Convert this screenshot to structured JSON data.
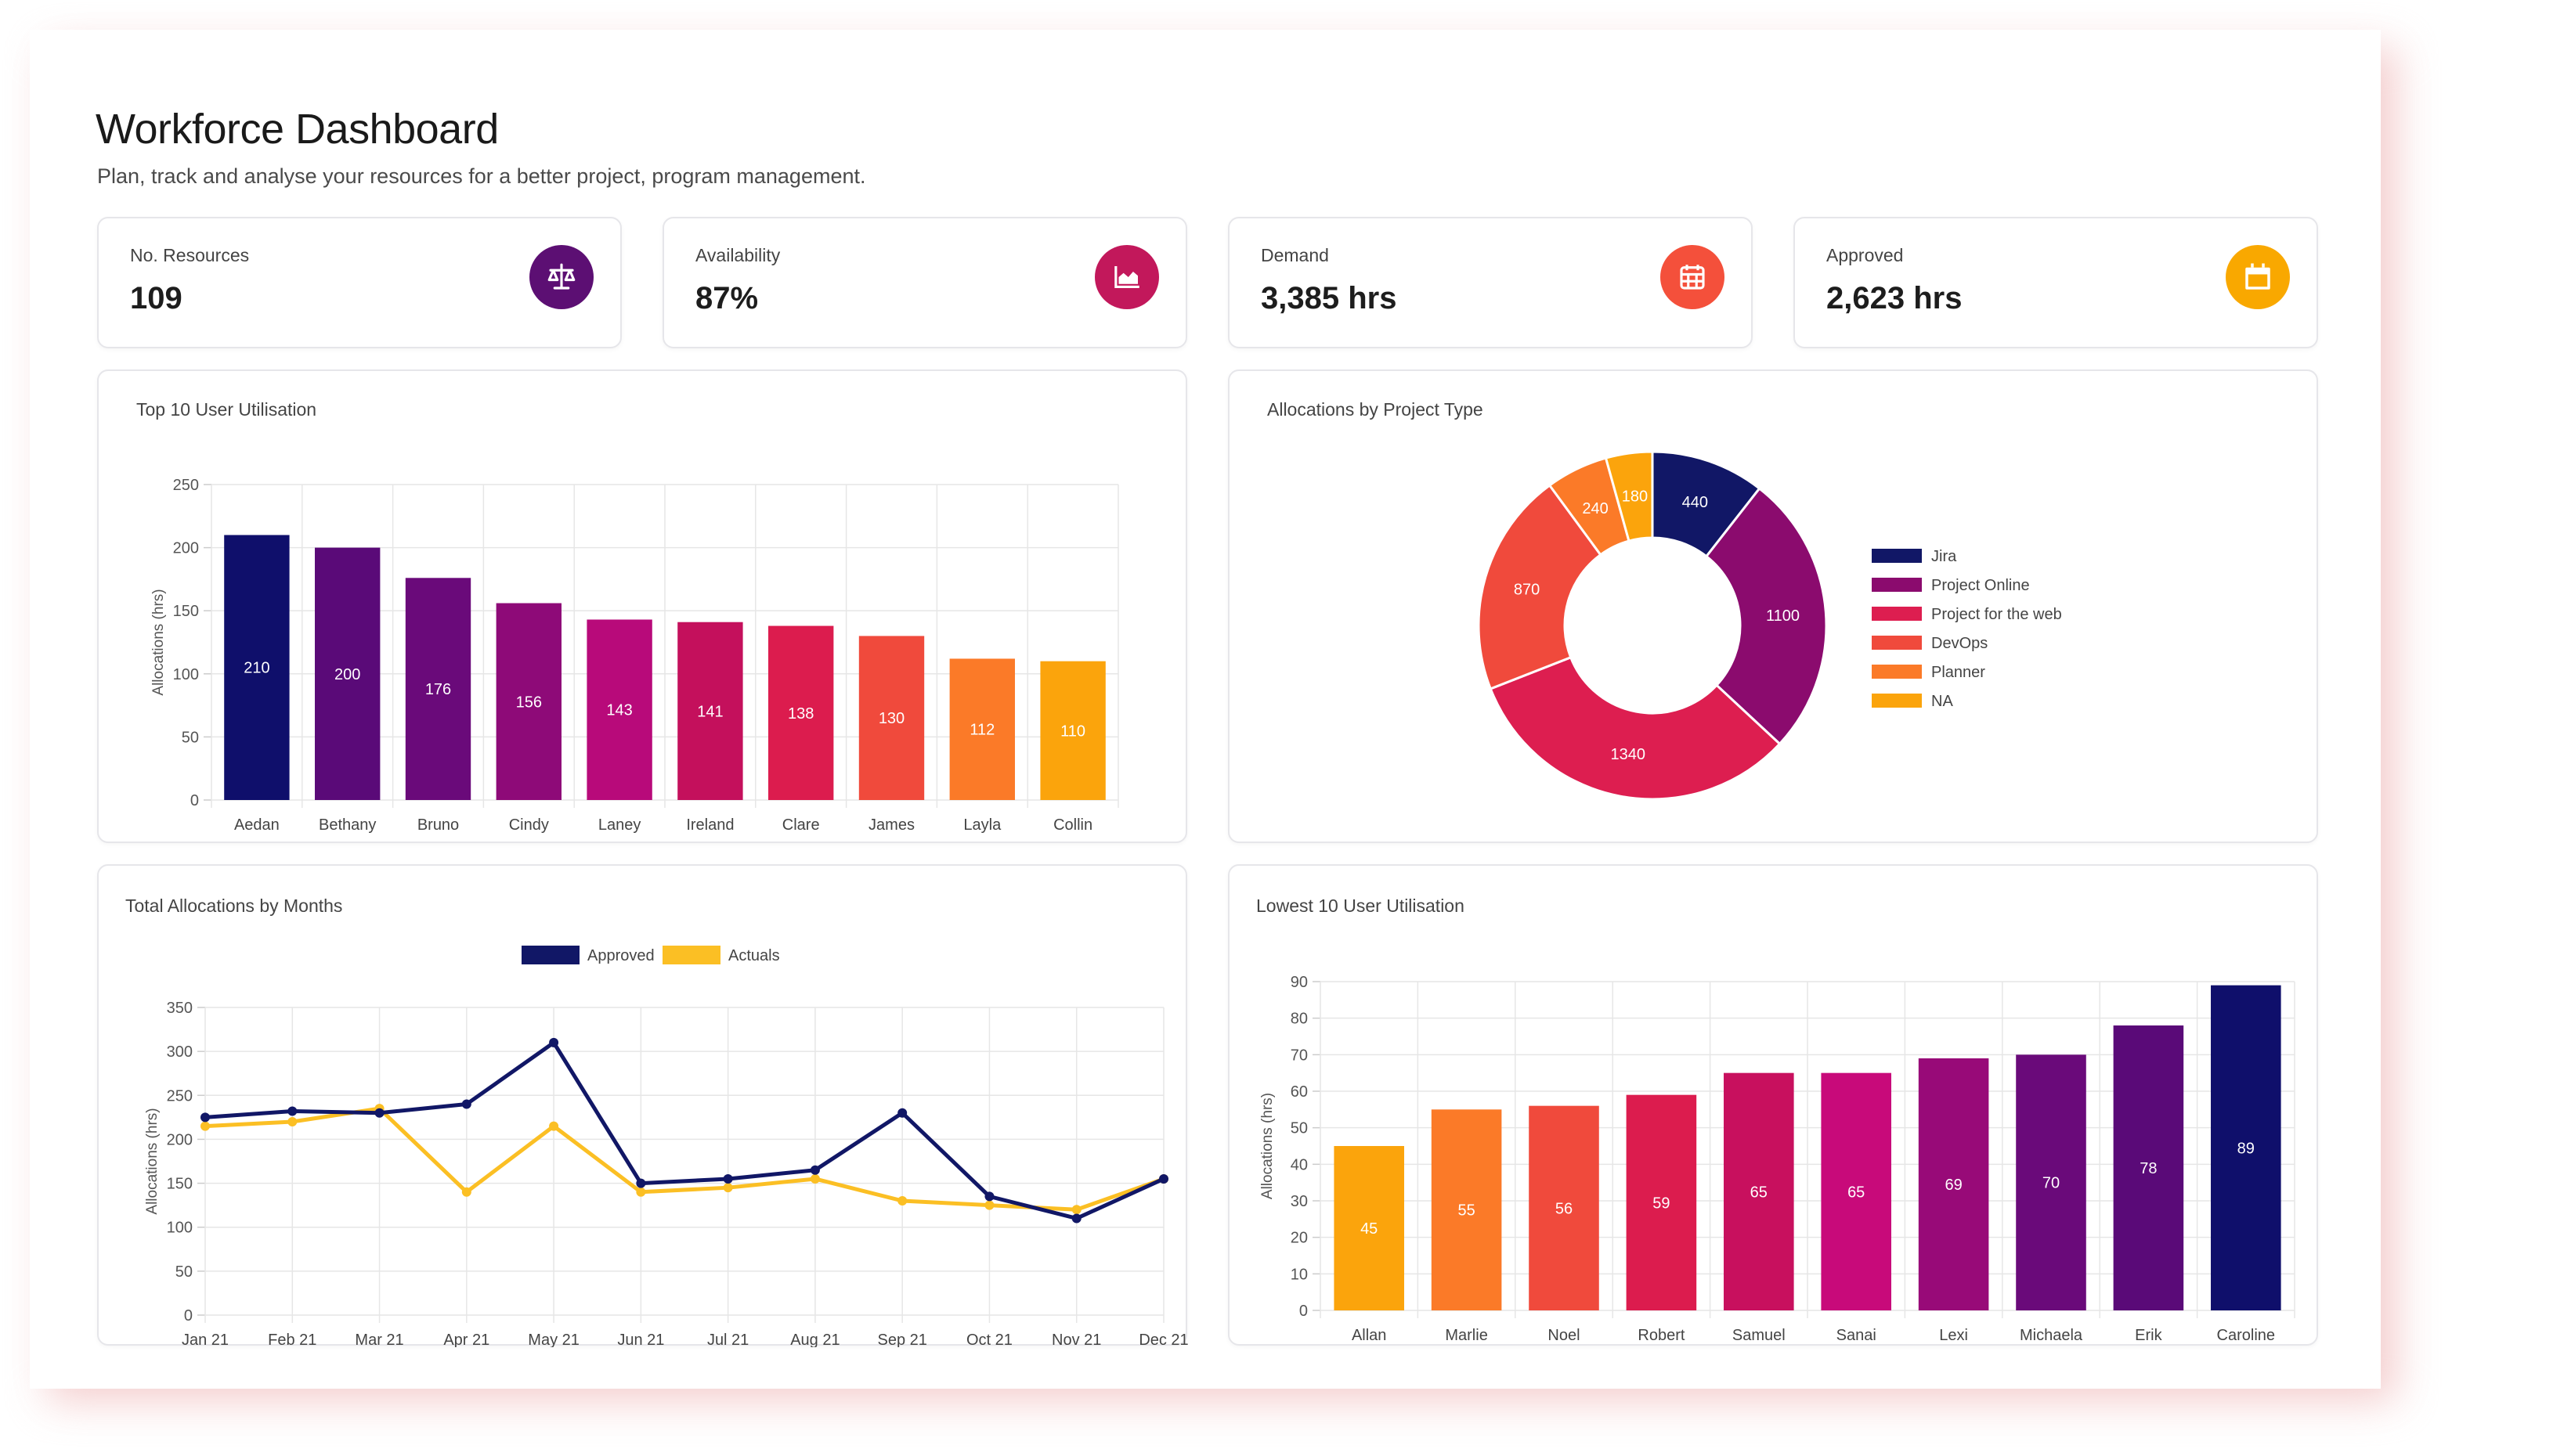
{
  "header": {
    "title": "Workforce Dashboard",
    "subtitle": "Plan, track and analyse your resources for a better project, program management."
  },
  "stats": [
    {
      "label": "No. Resources",
      "value": "109",
      "icon": "balance-scale-icon",
      "color": "#5c0f73"
    },
    {
      "label": "Availability",
      "value": "87%",
      "icon": "area-chart-icon",
      "color": "#c2185b"
    },
    {
      "label": "Demand",
      "value": "3,385 hrs",
      "icon": "calendar-grid-icon",
      "color": "#f4503b"
    },
    {
      "label": "Approved",
      "value": "2,623 hrs",
      "icon": "calendar-icon",
      "color": "#f9a800"
    }
  ],
  "chart_data": [
    {
      "type": "bar",
      "title": "Top 10 User Utilisation",
      "ylabel": "Allocations (hrs)",
      "ylim": [
        0,
        250
      ],
      "yticks": [
        0,
        50,
        100,
        150,
        200,
        250
      ],
      "categories": [
        "Aedan",
        "Bethany",
        "Bruno",
        "Cindy",
        "Laney",
        "Ireland",
        "Clare",
        "James",
        "Layla",
        "Collin"
      ],
      "values": [
        210,
        200,
        176,
        156,
        143,
        141,
        138,
        130,
        112,
        110
      ],
      "colors": [
        "#0f0f6b",
        "#5a0a78",
        "#6a0a7a",
        "#8e0a78",
        "#b80a7a",
        "#c4105c",
        "#dc1c4e",
        "#f04a3c",
        "#fb7a28",
        "#fba40c"
      ]
    },
    {
      "type": "pie",
      "title": "Allocations by Project Type",
      "labels": [
        "Jira",
        "Project Online",
        "Project for the web",
        "DevOps",
        "Planner",
        "NA"
      ],
      "values": [
        440,
        1100,
        1340,
        870,
        240,
        180
      ],
      "colors": [
        "#111766",
        "#8b0b6e",
        "#dd1e50",
        "#f04a3c",
        "#fb7a28",
        "#fba40c"
      ]
    },
    {
      "type": "line",
      "title": "Total Allocations by Months",
      "ylabel": "Allocations (hrs)",
      "ylim": [
        0,
        350
      ],
      "yticks": [
        0,
        50,
        100,
        150,
        200,
        250,
        300,
        350
      ],
      "x": [
        "Jan 21",
        "Feb 21",
        "Mar 21",
        "Apr 21",
        "May 21",
        "Jun 21",
        "Jul 21",
        "Aug 21",
        "Sep 21",
        "Oct 21",
        "Nov 21",
        "Dec 21"
      ],
      "series": [
        {
          "name": "Approved",
          "color": "#111766",
          "values": [
            225,
            232,
            230,
            240,
            310,
            150,
            155,
            165,
            230,
            135,
            110,
            155
          ]
        },
        {
          "name": "Actuals",
          "color": "#fbbf24",
          "values": [
            215,
            220,
            235,
            140,
            215,
            140,
            145,
            155,
            130,
            125,
            120,
            155
          ]
        }
      ]
    },
    {
      "type": "bar",
      "title": "Lowest 10 User Utilisation",
      "ylabel": "Allocations (hrs)",
      "ylim": [
        0,
        90
      ],
      "yticks": [
        0,
        10,
        20,
        30,
        40,
        50,
        60,
        70,
        80,
        90
      ],
      "categories": [
        "Allan",
        "Marlie",
        "Noel",
        "Robert",
        "Samuel",
        "Sanai",
        "Lexi",
        "Michaela",
        "Erik",
        "Caroline"
      ],
      "values": [
        45,
        55,
        56,
        59,
        65,
        65,
        69,
        70,
        78,
        89
      ],
      "colors": [
        "#fba40c",
        "#fb7a28",
        "#f04a3c",
        "#dc1c4e",
        "#c8105e",
        "#c80a7a",
        "#980a78",
        "#6a0a7a",
        "#5a0a78",
        "#0f0f6b"
      ]
    }
  ]
}
